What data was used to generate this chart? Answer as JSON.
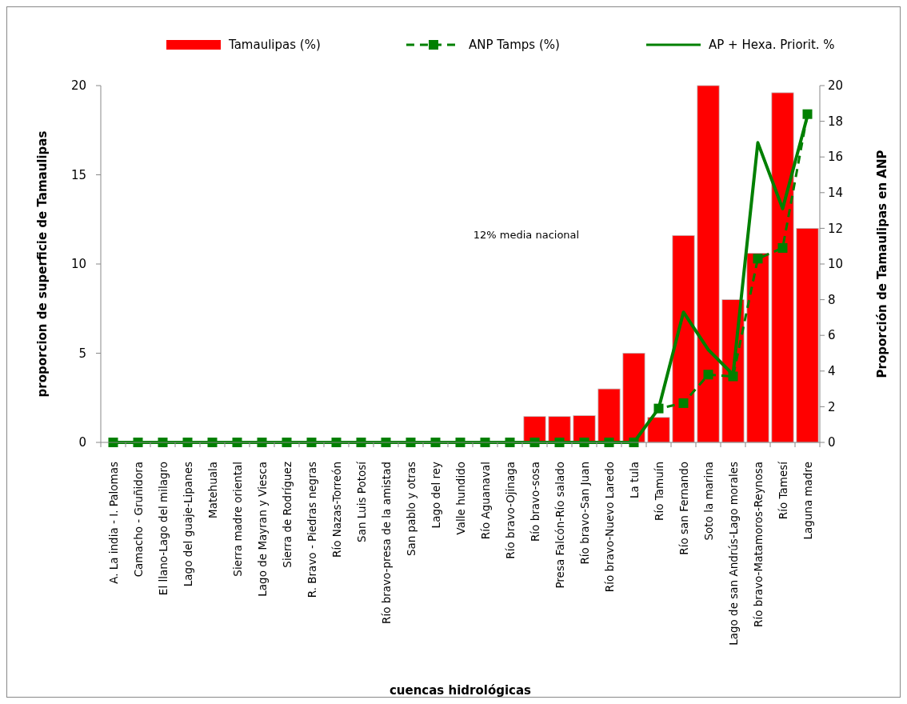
{
  "chart_data": {
    "type": "bar",
    "xlabel": "cuencas hidrológicas",
    "ylabel": "proporcion de superficie de Tamaulipas",
    "y2label": "Proporción de Tamaulipas en ANP",
    "categories": [
      "A. La india - I. Palomas",
      "Camacho - Gruñidora",
      "El llano-Lago del milagro",
      "Lago del guaje-Lipanes",
      "Matehuala",
      "Sierra madre oriental",
      "Lago de Mayran y Viesca",
      "Sierra de Rodríguez",
      "R. Bravo - Piedras negras",
      "Río Nazas-Torreón",
      "San Luis Potosí",
      "Río bravo-presa de la amistad",
      "San pablo y otras",
      "Lago del rey",
      "Valle hundido",
      "Río Aguanaval",
      "Río bravo-Ojinaga",
      "Río bravo-sosa",
      "Presa Falcón-Río salado",
      "Río bravo-San Juan",
      "Río bravo-Nuevo Laredo",
      "La tula",
      "Río Tamuín",
      "Río san Fernando",
      "Soto la marina",
      "Lago de san Andrús-Lago morales",
      "Río bravo-Matamoros-Reynosa",
      "Río Tamesí",
      "Laguna madre"
    ],
    "series": [
      {
        "name": "Tamaulipas (%)",
        "color": "#ff0000",
        "values": [
          0,
          0,
          0,
          0,
          0,
          0,
          0,
          0,
          0,
          0,
          0,
          0,
          0,
          0,
          0,
          0,
          0,
          1.45,
          1.45,
          1.5,
          3.0,
          5.0,
          1.4,
          11.6,
          20.0,
          8.0,
          10.6,
          19.6,
          12.0
        ]
      },
      {
        "name": "ANP Tamps (%)",
        "type": "line",
        "axis": "y2",
        "color": "#008000",
        "marker": "square",
        "line_style": "dashed",
        "values": [
          0,
          0,
          0,
          0,
          0,
          0,
          0,
          0,
          0,
          0,
          0,
          0,
          0,
          0,
          0,
          0,
          0,
          0,
          0,
          0,
          0,
          0,
          1.9,
          2.2,
          3.8,
          3.7,
          10.3,
          10.9,
          18.4
        ]
      },
      {
        "name": "AP + Hexa. Priorit. %",
        "type": "line",
        "axis": "y2",
        "color": "#008000",
        "marker": "none",
        "line_style": "solid",
        "values": [
          0,
          0,
          0,
          0,
          0,
          0,
          0,
          0,
          0,
          0,
          0,
          0,
          0,
          0,
          0,
          0,
          0,
          0,
          0,
          0,
          0,
          0,
          1.9,
          7.3,
          5.2,
          3.8,
          16.8,
          13.1,
          18.3
        ]
      }
    ],
    "ylim": [
      0,
      20
    ],
    "yticks": [
      0,
      5,
      10,
      15,
      20
    ],
    "y2lim": [
      0,
      20
    ],
    "y2ticks": [
      0,
      2,
      4,
      6,
      8,
      10,
      12,
      14,
      16,
      18,
      20
    ],
    "annotations": [
      "12% media nacional"
    ],
    "legend": "top",
    "grid": false
  }
}
